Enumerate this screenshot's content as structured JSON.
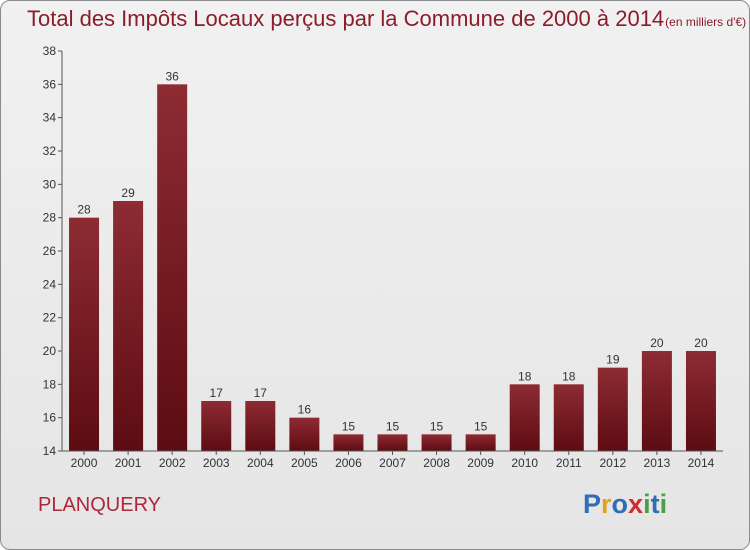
{
  "title": "Total des Impôts Locaux perçus par la Commune de 2000 à 2014",
  "unit": "(en milliers d'€)",
  "commune": "PLANQUERY",
  "logo": {
    "brand": "Proxiti",
    "letters": [
      "P",
      "r",
      "o",
      "x",
      "i",
      "t",
      "i"
    ]
  },
  "colors": {
    "bar": "#7a1820",
    "title": "#8b1c2a",
    "commune": "#b0263a"
  },
  "chart_data": {
    "type": "bar",
    "title": "Total des Impôts Locaux perçus par la Commune de 2000 à 2014",
    "xlabel": "",
    "ylabel": "",
    "categories": [
      "2000",
      "2001",
      "2002",
      "2003",
      "2004",
      "2005",
      "2006",
      "2007",
      "2008",
      "2009",
      "2010",
      "2011",
      "2012",
      "2013",
      "2014"
    ],
    "values": [
      28,
      29,
      36,
      17,
      17,
      16,
      15,
      15,
      15,
      15,
      18,
      18,
      19,
      20,
      20
    ],
    "ylim": [
      14,
      38
    ],
    "yticks": [
      14,
      16,
      18,
      20,
      22,
      24,
      26,
      28,
      30,
      32,
      34,
      36,
      38
    ],
    "grid": false
  }
}
